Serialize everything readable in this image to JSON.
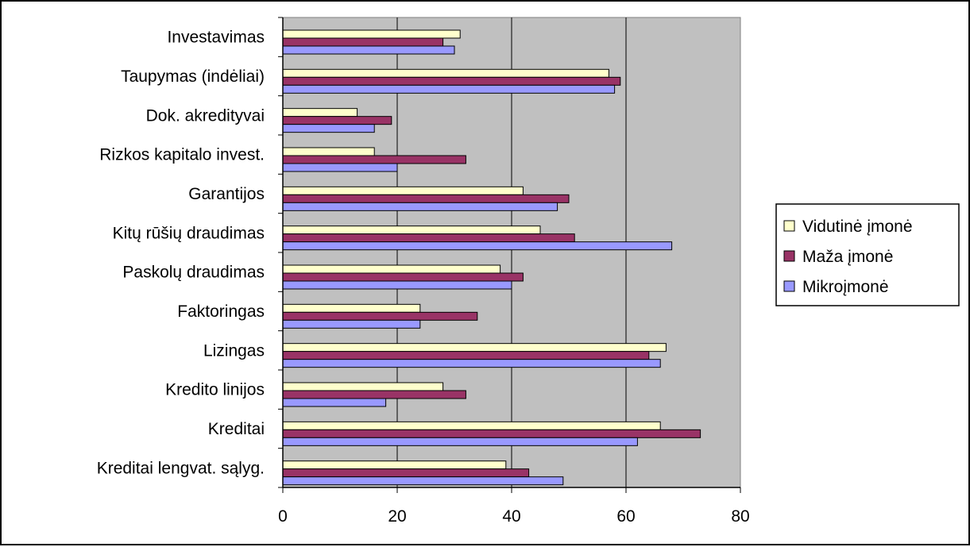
{
  "chart_data": {
    "type": "bar",
    "orientation": "horizontal",
    "title": "",
    "xlabel": "",
    "ylabel": "",
    "xlim": [
      0,
      80
    ],
    "x_ticks": [
      "0",
      "20",
      "40",
      "60",
      "80"
    ],
    "grid": true,
    "legend_position": "right",
    "plot_background": "#c0c0c0",
    "categories": [
      "Investavimas",
      "Taupymas (indėliai)",
      "Dok. akredityvai",
      "Rizkos kapitalo invest.",
      "Garantijos",
      "Kitų rūšių draudimas",
      "Paskolų draudimas",
      "Faktoringas",
      "Lizingas",
      "Kredito linijos",
      "Kreditai",
      "Kreditai lengvat. sąlyg."
    ],
    "series": [
      {
        "name": "Vidutinė įmonė",
        "color": "#ffffcc",
        "values": [
          31,
          57,
          13,
          16,
          42,
          45,
          38,
          24,
          67,
          28,
          66,
          39
        ]
      },
      {
        "name": "Maža įmonė",
        "color": "#993366",
        "values": [
          28,
          59,
          19,
          32,
          50,
          51,
          42,
          34,
          64,
          32,
          73,
          43
        ]
      },
      {
        "name": "Mikroįmonė",
        "color": "#9999ff",
        "values": [
          30,
          58,
          16,
          20,
          48,
          68,
          40,
          24,
          66,
          18,
          62,
          49
        ]
      }
    ]
  }
}
